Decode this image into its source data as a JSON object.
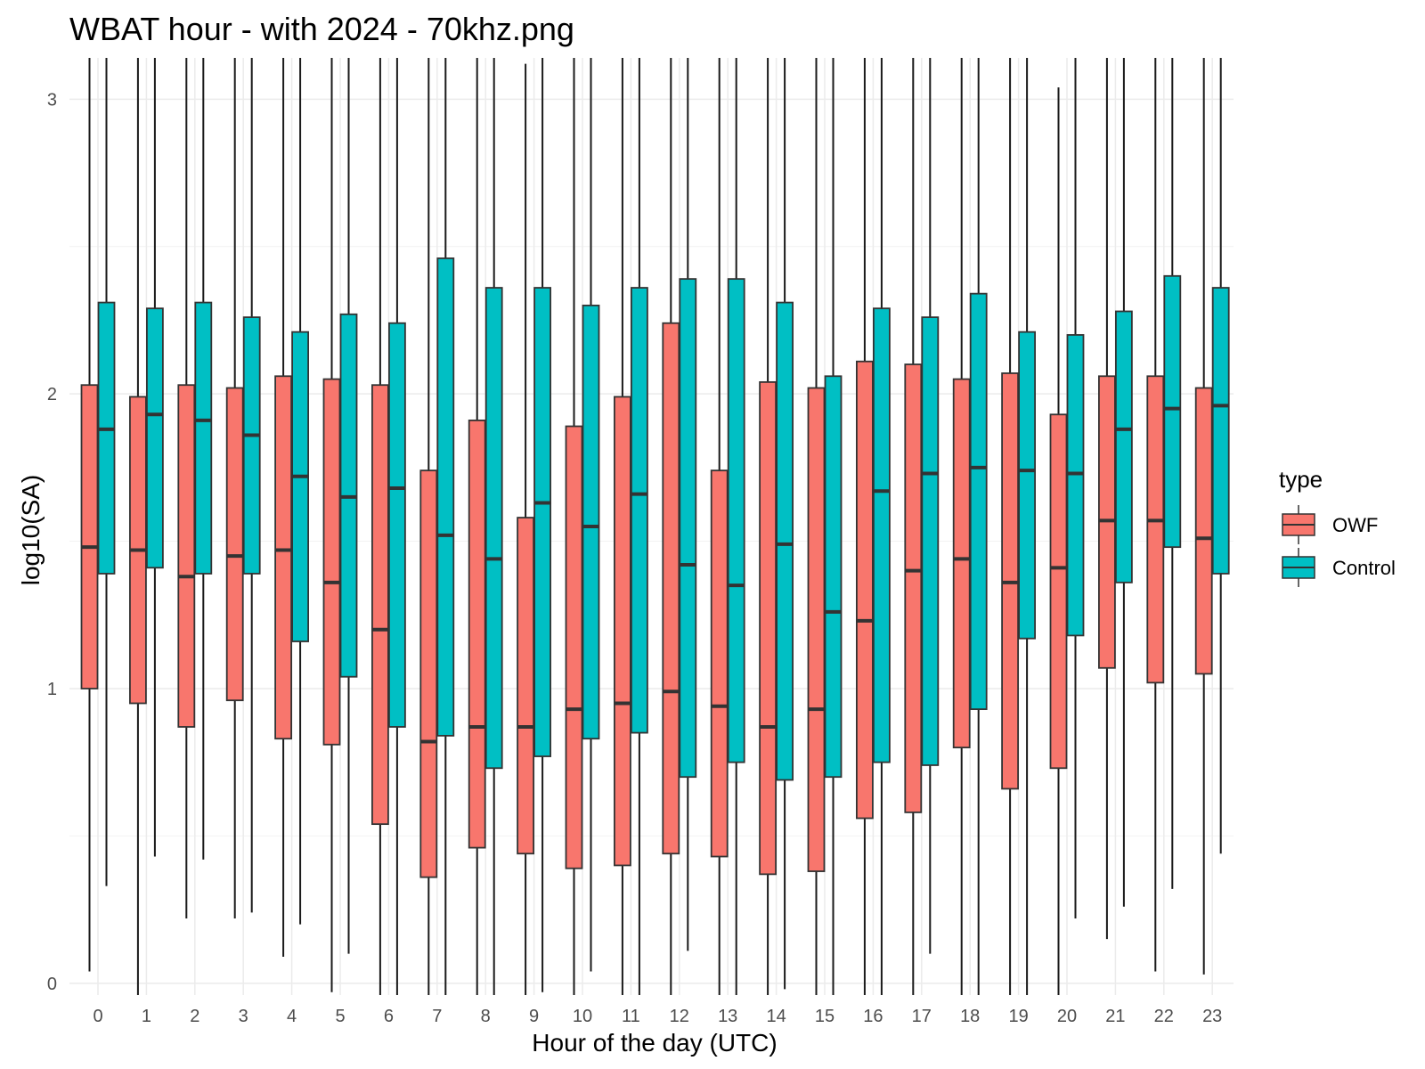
{
  "chart_data": {
    "type": "boxplot",
    "title": "WBAT hour - with 2024 - 70khz.png",
    "xlabel": "Hour of the day (UTC)",
    "ylabel": "log10(SA)",
    "ylim": [
      -0.04,
      3.14
    ],
    "yticks": [
      0,
      1,
      2,
      3
    ],
    "grid": true,
    "categories": [
      "0",
      "1",
      "2",
      "3",
      "4",
      "5",
      "6",
      "7",
      "8",
      "9",
      "10",
      "11",
      "12",
      "13",
      "14",
      "15",
      "16",
      "17",
      "18",
      "19",
      "20",
      "21",
      "22",
      "23"
    ],
    "legend": {
      "title": "type",
      "position": "right"
    },
    "series": [
      {
        "name": "OWF",
        "color": "#F8766D",
        "boxes": [
          {
            "low": 0.04,
            "q1": 1.0,
            "median": 1.48,
            "q3": 2.03,
            "high": 3.14
          },
          {
            "low": -0.04,
            "q1": 0.95,
            "median": 1.47,
            "q3": 1.99,
            "high": 3.14
          },
          {
            "low": 0.22,
            "q1": 0.87,
            "median": 1.38,
            "q3": 2.03,
            "high": 3.14
          },
          {
            "low": 0.22,
            "q1": 0.96,
            "median": 1.45,
            "q3": 2.02,
            "high": 3.14
          },
          {
            "low": 0.09,
            "q1": 0.83,
            "median": 1.47,
            "q3": 2.06,
            "high": 3.14
          },
          {
            "low": -0.03,
            "q1": 0.81,
            "median": 1.36,
            "q3": 2.05,
            "high": 3.14
          },
          {
            "low": -0.04,
            "q1": 0.54,
            "median": 1.2,
            "q3": 2.03,
            "high": 3.14
          },
          {
            "low": -0.04,
            "q1": 0.36,
            "median": 0.82,
            "q3": 1.74,
            "high": 3.14
          },
          {
            "low": -0.04,
            "q1": 0.46,
            "median": 0.87,
            "q3": 1.91,
            "high": 3.14
          },
          {
            "low": -0.04,
            "q1": 0.44,
            "median": 0.87,
            "q3": 1.58,
            "high": 3.12
          },
          {
            "low": -0.04,
            "q1": 0.39,
            "median": 0.93,
            "q3": 1.89,
            "high": 3.14
          },
          {
            "low": -0.04,
            "q1": 0.4,
            "median": 0.95,
            "q3": 1.99,
            "high": 3.14
          },
          {
            "low": -0.04,
            "q1": 0.44,
            "median": 0.99,
            "q3": 2.24,
            "high": 3.14
          },
          {
            "low": -0.04,
            "q1": 0.43,
            "median": 0.94,
            "q3": 1.74,
            "high": 3.14
          },
          {
            "low": -0.04,
            "q1": 0.37,
            "median": 0.87,
            "q3": 2.04,
            "high": 3.14
          },
          {
            "low": -0.04,
            "q1": 0.38,
            "median": 0.93,
            "q3": 2.02,
            "high": 3.14
          },
          {
            "low": -0.04,
            "q1": 0.56,
            "median": 1.23,
            "q3": 2.11,
            "high": 3.14
          },
          {
            "low": -0.04,
            "q1": 0.58,
            "median": 1.4,
            "q3": 2.1,
            "high": 3.14
          },
          {
            "low": -0.04,
            "q1": 0.8,
            "median": 1.44,
            "q3": 2.05,
            "high": 3.14
          },
          {
            "low": -0.04,
            "q1": 0.66,
            "median": 1.36,
            "q3": 2.07,
            "high": 3.14
          },
          {
            "low": -0.04,
            "q1": 0.73,
            "median": 1.41,
            "q3": 1.93,
            "high": 3.04
          },
          {
            "low": 0.15,
            "q1": 1.07,
            "median": 1.57,
            "q3": 2.06,
            "high": 3.14
          },
          {
            "low": 0.04,
            "q1": 1.02,
            "median": 1.57,
            "q3": 2.06,
            "high": 3.14
          },
          {
            "low": 0.03,
            "q1": 1.05,
            "median": 1.51,
            "q3": 2.02,
            "high": 3.14
          }
        ]
      },
      {
        "name": "Control",
        "color": "#00BFC4",
        "boxes": [
          {
            "low": 0.33,
            "q1": 1.39,
            "median": 1.88,
            "q3": 2.31,
            "high": 3.14
          },
          {
            "low": 0.43,
            "q1": 1.41,
            "median": 1.93,
            "q3": 2.29,
            "high": 3.14
          },
          {
            "low": 0.42,
            "q1": 1.39,
            "median": 1.91,
            "q3": 2.31,
            "high": 3.14
          },
          {
            "low": 0.24,
            "q1": 1.39,
            "median": 1.86,
            "q3": 2.26,
            "high": 3.14
          },
          {
            "low": 0.2,
            "q1": 1.16,
            "median": 1.72,
            "q3": 2.21,
            "high": 3.14
          },
          {
            "low": 0.1,
            "q1": 1.04,
            "median": 1.65,
            "q3": 2.27,
            "high": 3.14
          },
          {
            "low": -0.04,
            "q1": 0.87,
            "median": 1.68,
            "q3": 2.24,
            "high": 3.14
          },
          {
            "low": -0.04,
            "q1": 0.84,
            "median": 1.52,
            "q3": 2.46,
            "high": 3.14
          },
          {
            "low": -0.04,
            "q1": 0.73,
            "median": 1.44,
            "q3": 2.36,
            "high": 3.14
          },
          {
            "low": -0.03,
            "q1": 0.77,
            "median": 1.63,
            "q3": 2.36,
            "high": 3.14
          },
          {
            "low": 0.04,
            "q1": 0.83,
            "median": 1.55,
            "q3": 2.3,
            "high": 3.14
          },
          {
            "low": -0.04,
            "q1": 0.85,
            "median": 1.66,
            "q3": 2.36,
            "high": 3.14
          },
          {
            "low": 0.11,
            "q1": 0.7,
            "median": 1.42,
            "q3": 2.39,
            "high": 3.14
          },
          {
            "low": -0.04,
            "q1": 0.75,
            "median": 1.35,
            "q3": 2.39,
            "high": 3.14
          },
          {
            "low": -0.02,
            "q1": 0.69,
            "median": 1.49,
            "q3": 2.31,
            "high": 3.14
          },
          {
            "low": -0.04,
            "q1": 0.7,
            "median": 1.26,
            "q3": 2.06,
            "high": 3.14
          },
          {
            "low": -0.04,
            "q1": 0.75,
            "median": 1.67,
            "q3": 2.29,
            "high": 3.14
          },
          {
            "low": 0.1,
            "q1": 0.74,
            "median": 1.73,
            "q3": 2.26,
            "high": 3.14
          },
          {
            "low": -0.04,
            "q1": 0.93,
            "median": 1.75,
            "q3": 2.34,
            "high": 3.14
          },
          {
            "low": -0.04,
            "q1": 1.17,
            "median": 1.74,
            "q3": 2.21,
            "high": 3.14
          },
          {
            "low": 0.22,
            "q1": 1.18,
            "median": 1.73,
            "q3": 2.2,
            "high": 3.14
          },
          {
            "low": 0.26,
            "q1": 1.36,
            "median": 1.88,
            "q3": 2.28,
            "high": 3.14
          },
          {
            "low": 0.32,
            "q1": 1.48,
            "median": 1.95,
            "q3": 2.4,
            "high": 3.14
          },
          {
            "low": 0.44,
            "q1": 1.39,
            "median": 1.96,
            "q3": 2.36,
            "high": 3.14
          }
        ]
      }
    ]
  }
}
